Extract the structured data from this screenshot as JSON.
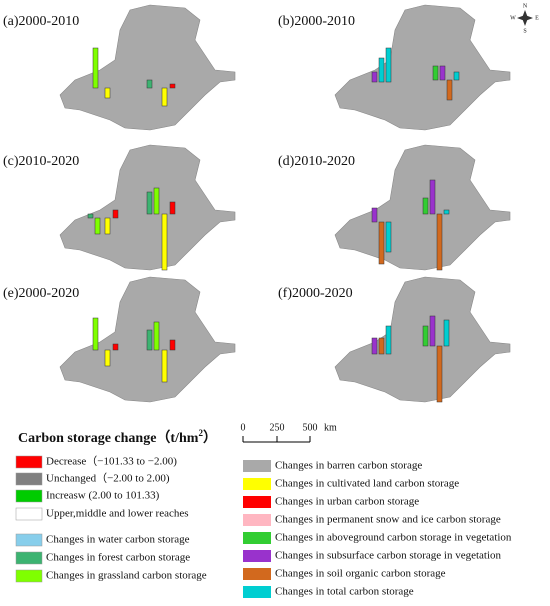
{
  "panels": [
    "(a)2000-2010",
    "(b)2000-2010",
    "(c)2010-2020",
    "(d)2010-2020",
    "(e)2000-2020",
    "(f)2000-2020"
  ],
  "compass": {
    "n": "N",
    "s": "S",
    "e": "E",
    "w": "W"
  },
  "legend": {
    "title": "Carbon storage change（t/hm",
    "title_sup": "2",
    "title_end": "）",
    "left_items": [
      "Decrease（−101.33 to −2.00)",
      "Unchanged（−2.00 to 2.00)",
      "Increasw (2.00 to 101.33)",
      "Upper,middle and lower reaches",
      "Changes in water carbon storage",
      "Changes in forest carbon storage",
      "Changes in grassland carbon storage"
    ],
    "right_items": [
      "Changes in barren carbon storage",
      "Changes in cultivated land carbon storage",
      "Changes in urban carbon storage",
      "Changes in permanent snow and ice carbon storage",
      "Changes in aboveground  carbon storage in vegetation",
      "Changes in subsurface  carbon storage in vegetation",
      "Changes in soil organic  carbon storage",
      "Changes in total  carbon storage"
    ]
  },
  "scale_bar": {
    "ticks": [
      "0",
      "250",
      "500"
    ],
    "unit": "km"
  }
}
